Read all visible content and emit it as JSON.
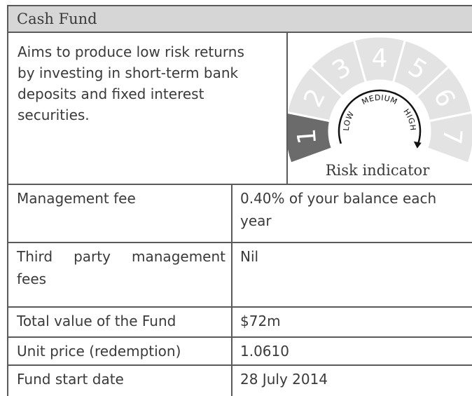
{
  "header": {
    "title": "Cash Fund"
  },
  "description": "Aims to produce low risk returns by investing in short-term bank deposits and fixed interest securities.",
  "risk_indicator": {
    "levels": [
      "1",
      "2",
      "3",
      "4",
      "5",
      "6",
      "7"
    ],
    "selected": "1",
    "low": "LOW",
    "medium": "MEDIUM",
    "high": "HIGH",
    "caption": "Risk indicator"
  },
  "table": {
    "rows": [
      [
        "Management fee",
        "0.40% of your balance each year"
      ],
      [
        "Third party management fees",
        "Nil"
      ],
      [
        "Total value of the Fund",
        "$72m"
      ],
      [
        "Unit price (redemption)",
        "1.0610"
      ],
      [
        "Fund start date",
        "28 July 2014"
      ]
    ]
  }
}
